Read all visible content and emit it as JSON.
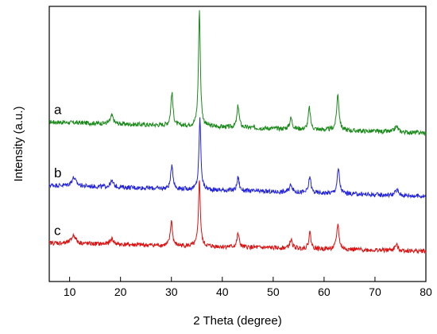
{
  "chart_data": {
    "type": "line",
    "xlabel": "2 Theta (degree)",
    "ylabel": "Intensity (a.u.)",
    "xlim": [
      6,
      80
    ],
    "x_ticks": [
      10,
      20,
      30,
      40,
      50,
      60,
      70,
      80
    ],
    "y_tick_labels": "none",
    "grid": false,
    "legend": "none",
    "series": [
      {
        "label": "a",
        "color": "#1a8a1a",
        "baseline": 0.58,
        "slope": -0.04,
        "noise": 0.008,
        "peaks": [
          {
            "x": 18.3,
            "height": 0.03,
            "width": 0.35
          },
          {
            "x": 30.1,
            "height": 0.12,
            "width": 0.25
          },
          {
            "x": 35.5,
            "height": 0.42,
            "width": 0.22
          },
          {
            "x": 43.1,
            "height": 0.08,
            "width": 0.25
          },
          {
            "x": 53.5,
            "height": 0.04,
            "width": 0.3
          },
          {
            "x": 57.1,
            "height": 0.08,
            "width": 0.25
          },
          {
            "x": 62.7,
            "height": 0.13,
            "width": 0.28
          },
          {
            "x": 74.2,
            "height": 0.02,
            "width": 0.4
          }
        ]
      },
      {
        "label": "b",
        "color": "#2222dd",
        "baseline": 0.35,
        "slope": -0.04,
        "noise": 0.008,
        "peaks": [
          {
            "x": 10.8,
            "height": 0.03,
            "width": 0.5
          },
          {
            "x": 18.3,
            "height": 0.02,
            "width": 0.4
          },
          {
            "x": 30.1,
            "height": 0.09,
            "width": 0.25
          },
          {
            "x": 35.6,
            "height": 0.26,
            "width": 0.22
          },
          {
            "x": 43.1,
            "height": 0.05,
            "width": 0.25
          },
          {
            "x": 53.5,
            "height": 0.03,
            "width": 0.3
          },
          {
            "x": 57.2,
            "height": 0.06,
            "width": 0.25
          },
          {
            "x": 62.8,
            "height": 0.09,
            "width": 0.28
          },
          {
            "x": 74.3,
            "height": 0.02,
            "width": 0.4
          }
        ]
      },
      {
        "label": "c",
        "color": "#dd1111",
        "baseline": 0.14,
        "slope": -0.03,
        "noise": 0.008,
        "peaks": [
          {
            "x": 10.8,
            "height": 0.03,
            "width": 0.5
          },
          {
            "x": 18.3,
            "height": 0.02,
            "width": 0.4
          },
          {
            "x": 30.0,
            "height": 0.09,
            "width": 0.25
          },
          {
            "x": 35.5,
            "height": 0.24,
            "width": 0.22
          },
          {
            "x": 43.1,
            "height": 0.05,
            "width": 0.25
          },
          {
            "x": 53.5,
            "height": 0.03,
            "width": 0.3
          },
          {
            "x": 57.2,
            "height": 0.06,
            "width": 0.25
          },
          {
            "x": 62.7,
            "height": 0.09,
            "width": 0.28
          },
          {
            "x": 74.2,
            "height": 0.02,
            "width": 0.4
          }
        ]
      }
    ]
  }
}
